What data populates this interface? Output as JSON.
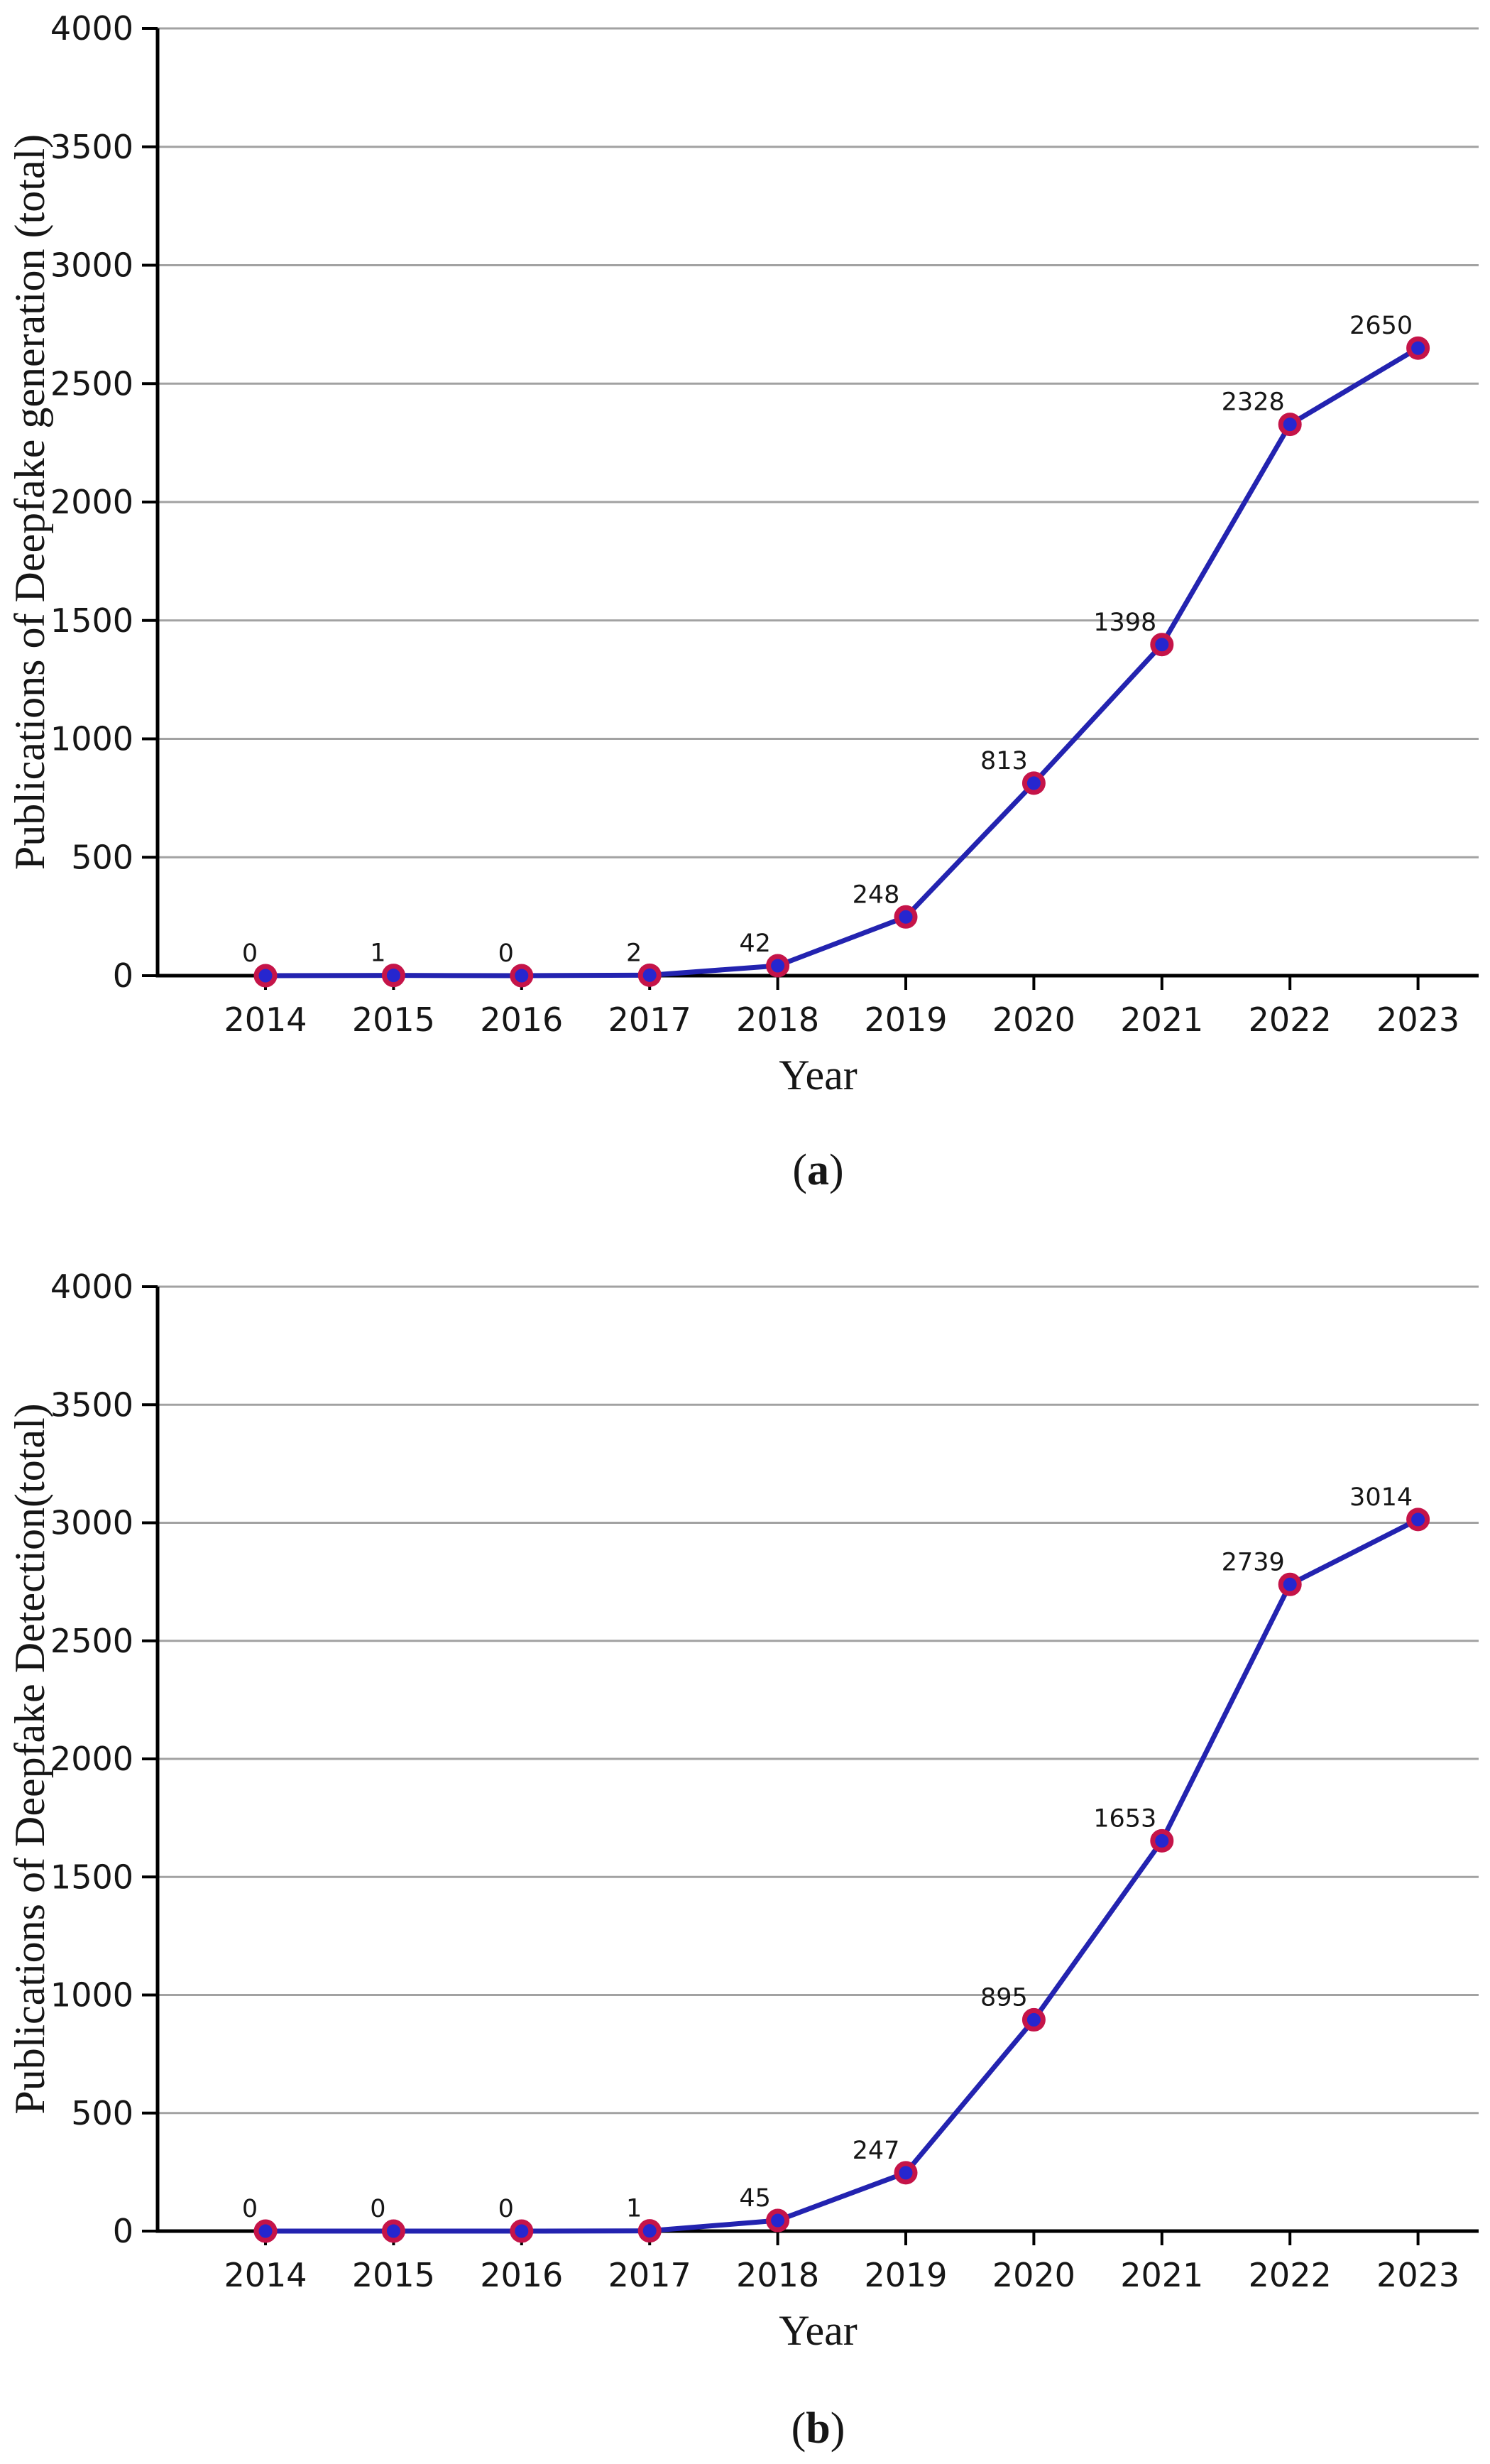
{
  "figure": {
    "background": "#ffffff",
    "panel_a_caption": "(a)",
    "panel_b_caption": "(b)"
  },
  "style": {
    "line_color": "#2323b0",
    "marker_face_color": "#2626cf",
    "marker_edge_color": "#c51449",
    "grid_color": "#a2a2a2",
    "axis_color": "#000000",
    "text_color": "#161616"
  },
  "chart_data": [
    {
      "type": "line",
      "panel": "a",
      "caption": "(a)",
      "x": [
        2014,
        2015,
        2016,
        2017,
        2018,
        2019,
        2020,
        2021,
        2022,
        2023
      ],
      "values": [
        0,
        1,
        0,
        2,
        42,
        248,
        813,
        1398,
        2328,
        2650
      ],
      "point_labels": [
        "0",
        "1",
        "0",
        "2",
        "42",
        "248",
        "813",
        "1398",
        "2328",
        "2650"
      ],
      "xlabel": "Year",
      "ylabel": "Publications of Deepfake generation (total)",
      "ylim": [
        0,
        4000
      ],
      "ytick_step": 500,
      "grid": true,
      "legend": "none"
    },
    {
      "type": "line",
      "panel": "b",
      "caption": "(b)",
      "x": [
        2014,
        2015,
        2016,
        2017,
        2018,
        2019,
        2020,
        2021,
        2022,
        2023
      ],
      "values": [
        0,
        0,
        0,
        1,
        45,
        247,
        895,
        1653,
        2739,
        3014
      ],
      "point_labels": [
        "0",
        "0",
        "0",
        "1",
        "45",
        "247",
        "895",
        "1653",
        "2739",
        "3014"
      ],
      "xlabel": "Year",
      "ylabel": "Publications of Deepfake Detection(total)",
      "ylim": [
        0,
        4000
      ],
      "ytick_step": 500,
      "grid": true,
      "legend": "none"
    }
  ]
}
